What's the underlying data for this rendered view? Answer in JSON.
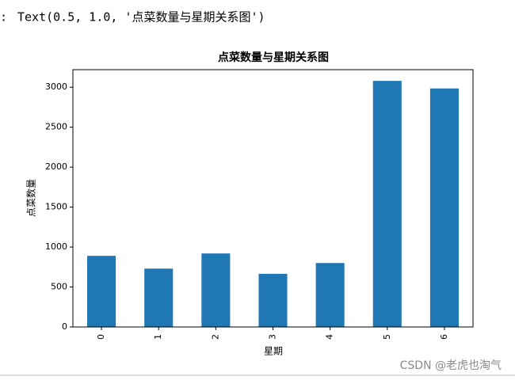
{
  "prompt": ":",
  "output_text": "Text(0.5, 1.0, '点菜数量与星期关系图')",
  "watermark": "CSDN @老虎也淘气",
  "chart_data": {
    "type": "bar",
    "title": "点菜数量与星期关系图",
    "x_label": "星期",
    "y_label": "点菜数量",
    "categories": [
      "0",
      "1",
      "2",
      "3",
      "4",
      "5",
      "6"
    ],
    "values": [
      890,
      730,
      920,
      665,
      800,
      3080,
      2985
    ],
    "color": "#1f77b4",
    "ylim": [
      0,
      3220
    ],
    "yticks": [
      0,
      500,
      1000,
      1500,
      2000,
      2500,
      3000
    ],
    "grid": false
  }
}
